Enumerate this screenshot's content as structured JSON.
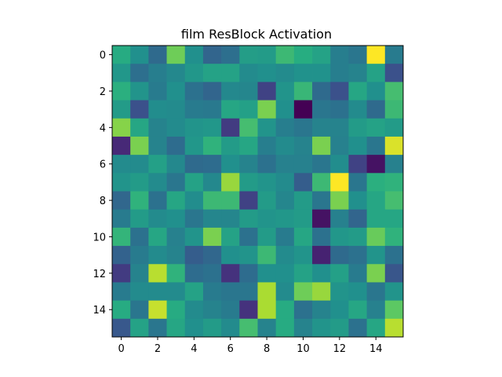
{
  "chart_data": {
    "type": "heatmap",
    "title": "film ResBlock Activation",
    "xlabel": "",
    "ylabel": "",
    "colormap": "viridis",
    "value_range": [
      0,
      1
    ],
    "rows": 16,
    "cols": 16,
    "x_ticks": [
      "0",
      "2",
      "4",
      "6",
      "8",
      "10",
      "12",
      "14"
    ],
    "y_ticks": [
      "0",
      "2",
      "4",
      "6",
      "8",
      "10",
      "12",
      "14"
    ],
    "values": [
      [
        0.62,
        0.5,
        0.35,
        0.78,
        0.5,
        0.33,
        0.37,
        0.56,
        0.55,
        0.68,
        0.63,
        0.58,
        0.43,
        0.4,
        1.0,
        0.42
      ],
      [
        0.53,
        0.37,
        0.43,
        0.47,
        0.53,
        0.58,
        0.58,
        0.48,
        0.5,
        0.48,
        0.51,
        0.51,
        0.43,
        0.45,
        0.58,
        0.25
      ],
      [
        0.64,
        0.52,
        0.42,
        0.5,
        0.38,
        0.33,
        0.47,
        0.46,
        0.2,
        0.52,
        0.67,
        0.35,
        0.25,
        0.6,
        0.5,
        0.7
      ],
      [
        0.55,
        0.25,
        0.49,
        0.48,
        0.42,
        0.41,
        0.6,
        0.57,
        0.8,
        0.5,
        0.0,
        0.4,
        0.38,
        0.48,
        0.35,
        0.68
      ],
      [
        0.82,
        0.6,
        0.45,
        0.48,
        0.52,
        0.53,
        0.18,
        0.7,
        0.52,
        0.43,
        0.4,
        0.45,
        0.45,
        0.55,
        0.58,
        0.55
      ],
      [
        0.12,
        0.8,
        0.45,
        0.36,
        0.53,
        0.65,
        0.55,
        0.6,
        0.43,
        0.48,
        0.45,
        0.8,
        0.44,
        0.5,
        0.4,
        0.95
      ],
      [
        0.48,
        0.48,
        0.57,
        0.47,
        0.35,
        0.36,
        0.5,
        0.45,
        0.38,
        0.44,
        0.44,
        0.4,
        0.49,
        0.2,
        0.05,
        0.44
      ],
      [
        0.52,
        0.55,
        0.48,
        0.4,
        0.58,
        0.47,
        0.85,
        0.55,
        0.52,
        0.48,
        0.3,
        0.68,
        1.0,
        0.4,
        0.64,
        0.65
      ],
      [
        0.34,
        0.65,
        0.38,
        0.6,
        0.49,
        0.68,
        0.68,
        0.2,
        0.55,
        0.46,
        0.55,
        0.4,
        0.8,
        0.5,
        0.6,
        0.7
      ],
      [
        0.42,
        0.55,
        0.48,
        0.5,
        0.4,
        0.46,
        0.46,
        0.55,
        0.52,
        0.53,
        0.55,
        0.05,
        0.44,
        0.33,
        0.6,
        0.6
      ],
      [
        0.66,
        0.38,
        0.6,
        0.44,
        0.52,
        0.8,
        0.58,
        0.38,
        0.55,
        0.42,
        0.6,
        0.38,
        0.53,
        0.55,
        0.77,
        0.65
      ],
      [
        0.32,
        0.42,
        0.48,
        0.45,
        0.3,
        0.34,
        0.5,
        0.52,
        0.68,
        0.48,
        0.52,
        0.1,
        0.35,
        0.38,
        0.52,
        0.38
      ],
      [
        0.18,
        0.45,
        0.9,
        0.65,
        0.36,
        0.38,
        0.15,
        0.36,
        0.5,
        0.5,
        0.58,
        0.5,
        0.57,
        0.42,
        0.8,
        0.27
      ],
      [
        0.42,
        0.48,
        0.48,
        0.48,
        0.58,
        0.42,
        0.4,
        0.4,
        0.88,
        0.48,
        0.78,
        0.85,
        0.52,
        0.5,
        0.4,
        0.52
      ],
      [
        0.62,
        0.4,
        0.92,
        0.62,
        0.48,
        0.45,
        0.42,
        0.15,
        0.88,
        0.62,
        0.38,
        0.45,
        0.5,
        0.6,
        0.44,
        0.75
      ],
      [
        0.28,
        0.58,
        0.4,
        0.6,
        0.5,
        0.55,
        0.48,
        0.7,
        0.45,
        0.62,
        0.45,
        0.52,
        0.55,
        0.38,
        0.6,
        0.9
      ]
    ]
  }
}
